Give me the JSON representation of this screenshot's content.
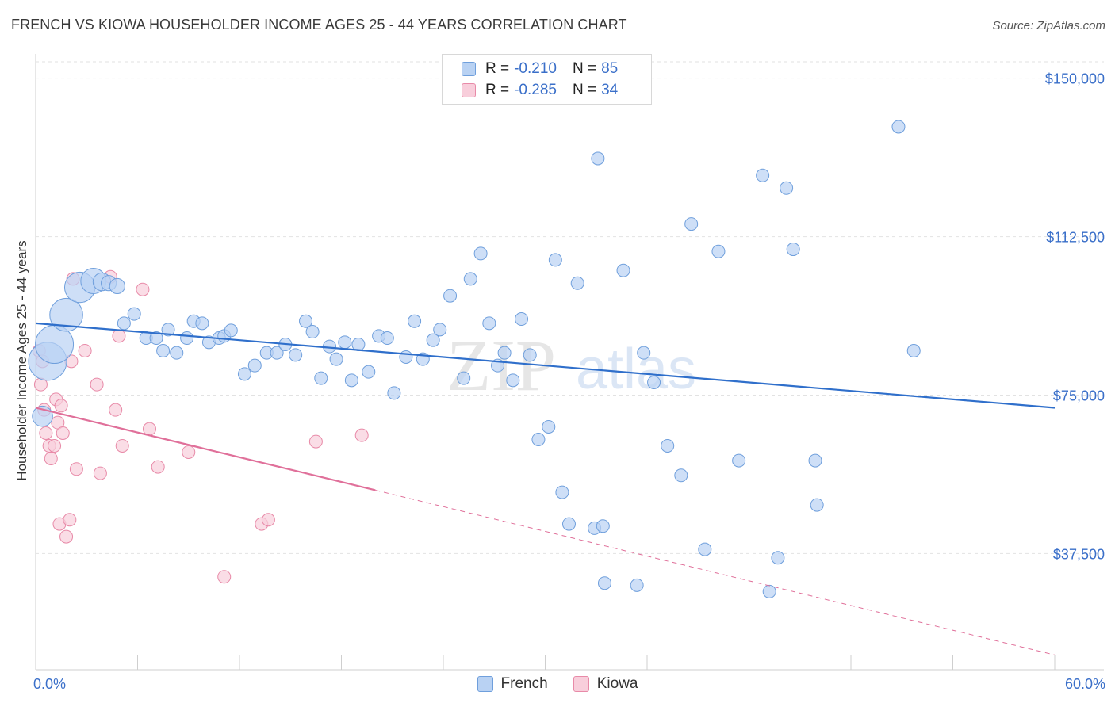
{
  "header": {
    "title": "FRENCH VS KIOWA HOUSEHOLDER INCOME AGES 25 - 44 YEARS CORRELATION CHART",
    "source": "Source: ZipAtlas.com"
  },
  "watermark": {
    "zip": "ZIP",
    "atlas": "atlas"
  },
  "legend": {
    "rows": [
      {
        "r_label": "R =",
        "r_value": "-0.210",
        "n_label": "N =",
        "n_value": "85",
        "color": "#a9c8f0",
        "border": "#6f9fdc"
      },
      {
        "r_label": "R =",
        "r_value": "-0.285",
        "n_label": "N =",
        "n_value": "34",
        "color": "#f7c3d3",
        "border": "#e88aa8"
      }
    ]
  },
  "bottom_legend": {
    "french": "French",
    "kiowa": "Kiowa"
  },
  "chart_data": {
    "type": "scatter",
    "title": "FRENCH VS KIOWA HOUSEHOLDER INCOME AGES 25 - 44 YEARS CORRELATION CHART",
    "xlabel": "",
    "ylabel": "Householder Income Ages 25 - 44 years",
    "xlim": [
      0,
      60
    ],
    "ylim": [
      10000,
      155000
    ],
    "x_tick_labels": [
      "0.0%",
      "60.0%"
    ],
    "y_ticks": [
      37500,
      75000,
      112500,
      150000
    ],
    "y_tick_labels": [
      "$37,500",
      "$75,000",
      "$112,500",
      "$150,000"
    ],
    "grid": true,
    "colors": {
      "french": "#6f9fdc",
      "french_fill": "#b9d2f3",
      "kiowa": "#e88aa8",
      "kiowa_fill": "#f8cedb",
      "french_line": "#2f6fcb",
      "kiowa_line": "#e0709a",
      "tick_label": "#3a6fc9"
    },
    "series": [
      {
        "name": "French",
        "trend": {
          "x": [
            0,
            60
          ],
          "y": [
            92000,
            72000
          ],
          "style": "solid"
        },
        "points": [
          [
            0.7,
            83000,
            3
          ],
          [
            1.1,
            87000,
            3
          ],
          [
            1.8,
            94000,
            2.6
          ],
          [
            2.6,
            100500,
            2.4
          ],
          [
            3.4,
            102000,
            2
          ],
          [
            3.9,
            101800,
            1.4
          ],
          [
            4.3,
            101500,
            1.2
          ],
          [
            4.8,
            100800,
            1.2
          ],
          [
            0.4,
            70000,
            1.6
          ],
          [
            5.2,
            92000,
            1
          ],
          [
            5.8,
            94200,
            1
          ],
          [
            6.5,
            88500,
            1
          ],
          [
            7.1,
            88500,
            1
          ],
          [
            7.5,
            85500,
            1
          ],
          [
            7.8,
            90500,
            1
          ],
          [
            8.3,
            85000,
            1
          ],
          [
            8.9,
            88500,
            1
          ],
          [
            9.3,
            92500,
            1
          ],
          [
            9.8,
            92000,
            1
          ],
          [
            10.2,
            87500,
            1
          ],
          [
            10.8,
            88500,
            1
          ],
          [
            11.1,
            89000,
            1
          ],
          [
            11.5,
            90300,
            1
          ],
          [
            12.3,
            80000,
            1
          ],
          [
            12.9,
            82000,
            1
          ],
          [
            13.6,
            85000,
            1
          ],
          [
            14.2,
            85000,
            1
          ],
          [
            14.7,
            87000,
            1
          ],
          [
            15.3,
            84500,
            1
          ],
          [
            15.9,
            92500,
            1
          ],
          [
            16.3,
            90000,
            1
          ],
          [
            16.8,
            79000,
            1
          ],
          [
            17.3,
            86500,
            1
          ],
          [
            17.7,
            83500,
            1
          ],
          [
            18.2,
            87500,
            1
          ],
          [
            18.6,
            78500,
            1
          ],
          [
            19.0,
            87000,
            1
          ],
          [
            19.6,
            80500,
            1
          ],
          [
            20.2,
            89000,
            1
          ],
          [
            20.7,
            88500,
            1
          ],
          [
            21.1,
            75500,
            1
          ],
          [
            21.8,
            84000,
            1
          ],
          [
            22.3,
            92500,
            1
          ],
          [
            22.8,
            83500,
            1
          ],
          [
            23.4,
            88000,
            1
          ],
          [
            23.8,
            90500,
            1
          ],
          [
            24.4,
            98500,
            1
          ],
          [
            25.2,
            79000,
            1
          ],
          [
            25.6,
            102500,
            1
          ],
          [
            26.2,
            108500,
            1
          ],
          [
            26.7,
            92000,
            1
          ],
          [
            27.2,
            82000,
            1
          ],
          [
            27.6,
            85000,
            1
          ],
          [
            28.1,
            78500,
            1
          ],
          [
            28.6,
            93000,
            1
          ],
          [
            29.1,
            84500,
            1
          ],
          [
            29.6,
            64500,
            1
          ],
          [
            30.2,
            67500,
            1
          ],
          [
            30.6,
            107000,
            1
          ],
          [
            31.0,
            52000,
            1
          ],
          [
            31.4,
            44500,
            1
          ],
          [
            31.9,
            101500,
            1
          ],
          [
            32.9,
            43500,
            1
          ],
          [
            33.4,
            44000,
            1
          ],
          [
            33.1,
            131000,
            1
          ],
          [
            33.5,
            30500,
            1
          ],
          [
            34.6,
            104500,
            1
          ],
          [
            35.4,
            30000,
            1
          ],
          [
            35.8,
            85000,
            1
          ],
          [
            36.4,
            78000,
            1
          ],
          [
            37.2,
            63000,
            1
          ],
          [
            38.0,
            56000,
            1
          ],
          [
            38.6,
            115500,
            1
          ],
          [
            39.4,
            38500,
            1
          ],
          [
            40.2,
            109000,
            1
          ],
          [
            41.4,
            59500,
            1
          ],
          [
            42.8,
            127000,
            1
          ],
          [
            43.7,
            36500,
            1
          ],
          [
            43.2,
            28500,
            1
          ],
          [
            44.2,
            124000,
            1
          ],
          [
            44.6,
            109500,
            1
          ],
          [
            45.9,
            59500,
            1
          ],
          [
            46.0,
            49000,
            1
          ],
          [
            50.8,
            138500,
            1
          ],
          [
            51.7,
            85500,
            1
          ]
        ]
      },
      {
        "name": "Kiowa",
        "trend": {
          "x": [
            0,
            20
          ],
          "y": [
            72000,
            52500
          ],
          "style": "solid",
          "extended": {
            "x": [
              20,
              60
            ],
            "y": [
              52500,
              13500
            ],
            "style": "dashed"
          }
        },
        "points": [
          [
            0.2,
            85500,
            1
          ],
          [
            0.4,
            83000,
            1
          ],
          [
            0.3,
            77500,
            1
          ],
          [
            0.5,
            71500,
            1
          ],
          [
            0.6,
            66000,
            1
          ],
          [
            0.8,
            63000,
            1
          ],
          [
            0.9,
            60000,
            1
          ],
          [
            1.1,
            63000,
            1
          ],
          [
            1.2,
            74000,
            1
          ],
          [
            1.3,
            68500,
            1
          ],
          [
            1.5,
            72500,
            1
          ],
          [
            1.6,
            66000,
            1
          ],
          [
            1.4,
            44500,
            1
          ],
          [
            1.8,
            41500,
            1
          ],
          [
            2.0,
            45500,
            1
          ],
          [
            2.1,
            83000,
            1
          ],
          [
            2.2,
            102500,
            1
          ],
          [
            2.4,
            57500,
            1
          ],
          [
            2.9,
            85500,
            1
          ],
          [
            3.6,
            77500,
            1
          ],
          [
            3.8,
            56500,
            1
          ],
          [
            4.4,
            103000,
            1
          ],
          [
            4.7,
            71500,
            1
          ],
          [
            4.9,
            89000,
            1
          ],
          [
            5.1,
            63000,
            1
          ],
          [
            6.3,
            100000,
            1
          ],
          [
            6.7,
            67000,
            1
          ],
          [
            7.2,
            58000,
            1
          ],
          [
            9.0,
            61500,
            1
          ],
          [
            11.1,
            32000,
            1
          ],
          [
            13.3,
            44500,
            1
          ],
          [
            13.7,
            45500,
            1
          ],
          [
            16.5,
            64000,
            1
          ],
          [
            19.2,
            65500,
            1
          ]
        ]
      }
    ]
  }
}
